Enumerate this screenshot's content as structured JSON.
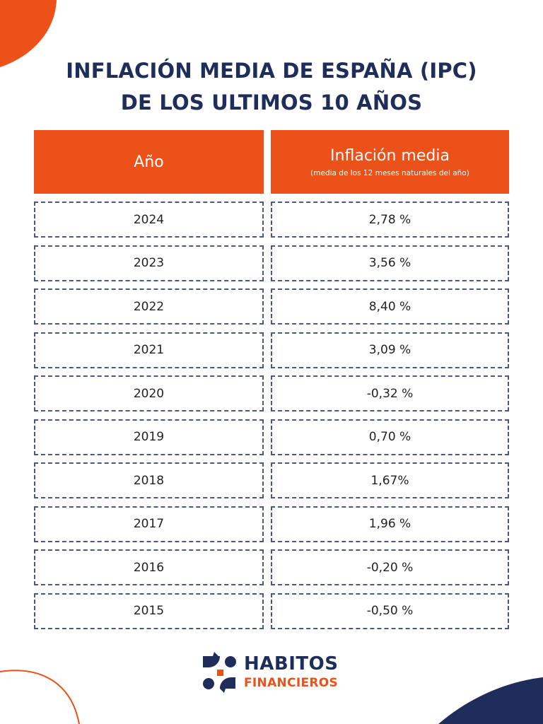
{
  "title": {
    "line1": "INFLACIÓN MEDIA DE ESPAÑA (IPC)",
    "line2": "DE LOS ULTIMOS 10 AÑOS"
  },
  "table": {
    "headers": {
      "year": "Año",
      "inflation": "Inflación media",
      "inflation_note": "(media de los 12 meses naturales del año)"
    },
    "rows": [
      {
        "year": "2024",
        "value": "2,78 %"
      },
      {
        "year": "2023",
        "value": "3,56 %"
      },
      {
        "year": "2022",
        "value": "8,40 %"
      },
      {
        "year": "2021",
        "value": "3,09 %"
      },
      {
        "year": "2020",
        "value": "-0,32 %"
      },
      {
        "year": "2019",
        "value": "0,70 %"
      },
      {
        "year": "2018",
        "value": "1,67%"
      },
      {
        "year": "2017",
        "value": "1,96 %"
      },
      {
        "year": "2016",
        "value": "-0,20 %"
      },
      {
        "year": "2015",
        "value": "-0,50 %"
      }
    ]
  },
  "logo": {
    "line1": "HABITOS",
    "line2": "FINANCIEROS"
  },
  "colors": {
    "accent": "#eb5119",
    "navy": "#1e2d5a",
    "border": "#4b5880"
  }
}
